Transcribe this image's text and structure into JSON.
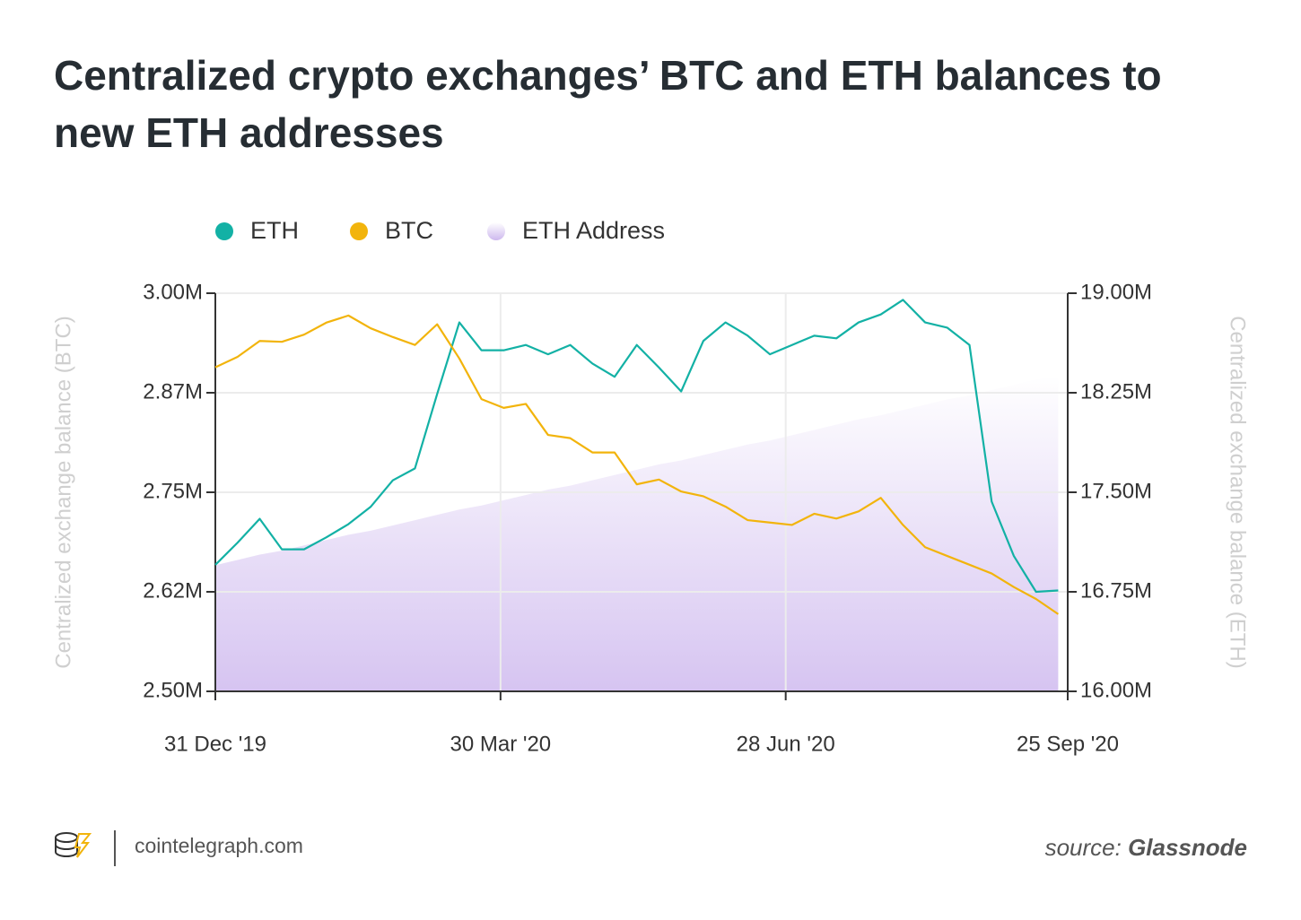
{
  "chart_data": {
    "type": "line",
    "title": "Centralized crypto exchanges’ BTC and ETH balances to new ETH addresses",
    "ylabel": "Centralized exchange balance (BTC)",
    "y2label": "Centralized exchange balance (ETH)",
    "x": [
      "2019-12-31",
      "2020-01-07",
      "2020-01-14",
      "2020-01-21",
      "2020-01-28",
      "2020-02-04",
      "2020-02-11",
      "2020-02-18",
      "2020-02-25",
      "2020-03-03",
      "2020-03-10",
      "2020-03-17",
      "2020-03-24",
      "2020-03-31",
      "2020-04-07",
      "2020-04-14",
      "2020-04-21",
      "2020-04-28",
      "2020-05-05",
      "2020-05-12",
      "2020-05-19",
      "2020-05-26",
      "2020-06-02",
      "2020-06-09",
      "2020-06-16",
      "2020-06-23",
      "2020-06-30",
      "2020-07-07",
      "2020-07-14",
      "2020-07-21",
      "2020-07-28",
      "2020-08-04",
      "2020-08-11",
      "2020-08-18",
      "2020-08-25",
      "2020-09-01",
      "2020-09-08",
      "2020-09-15",
      "2020-09-22"
    ],
    "xlim": [
      "2019-12-31",
      "2020-09-25"
    ],
    "xticks": [
      {
        "value": "2019-12-31",
        "label": "31 Dec '19"
      },
      {
        "value": "2020-03-30",
        "label": "30 Mar '20"
      },
      {
        "value": "2020-06-28",
        "label": "28 Jun '20"
      },
      {
        "value": "2020-09-25",
        "label": "25 Sep '20"
      }
    ],
    "ylim": [
      2500000,
      3000000
    ],
    "yticks": [
      {
        "value": 2500000,
        "label": "2.50M"
      },
      {
        "value": 2625000,
        "label": "2.62M"
      },
      {
        "value": 2750000,
        "label": "2.75M"
      },
      {
        "value": 2875000,
        "label": "2.87M"
      },
      {
        "value": 3000000,
        "label": "3.00M"
      }
    ],
    "y2lim": [
      16000000,
      19000000
    ],
    "y2ticks": [
      {
        "value": 16000000,
        "label": "16.00M"
      },
      {
        "value": 16750000,
        "label": "16.75M"
      },
      {
        "value": 17500000,
        "label": "17.50M"
      },
      {
        "value": 18250000,
        "label": "18.25M"
      },
      {
        "value": 19000000,
        "label": "19.00M"
      }
    ],
    "grid": true,
    "legend": "top",
    "series": [
      {
        "name": "ETH",
        "color": "#13b1a5",
        "axis": "y2",
        "values": [
          16953000,
          17120000,
          17300000,
          17070000,
          17070000,
          17160000,
          17260000,
          17390000,
          17590000,
          17680000,
          18240000,
          18780000,
          18570000,
          18570000,
          18610000,
          18540000,
          18610000,
          18470000,
          18370000,
          18610000,
          18440000,
          18260000,
          18640000,
          18780000,
          18680000,
          18540000,
          18610000,
          18680000,
          18660000,
          18780000,
          18840000,
          18950000,
          18780000,
          18740000,
          18610000,
          17430000,
          17020000,
          16750000,
          16760000
        ]
      },
      {
        "name": "BTC",
        "color": "#f2b40c",
        "values": [
          2907000,
          2920000,
          2940000,
          2939000,
          2948000,
          2963000,
          2972000,
          2956000,
          2945000,
          2935000,
          2961000,
          2918000,
          2867000,
          2856000,
          2861000,
          2822000,
          2818000,
          2800000,
          2800000,
          2760000,
          2766000,
          2751000,
          2745000,
          2732000,
          2715000,
          2712000,
          2709000,
          2723000,
          2717000,
          2726000,
          2743000,
          2709000,
          2681000,
          2670000,
          2659000,
          2648000,
          2631000,
          2616000,
          2597000
        ]
      },
      {
        "name": "ETH Address",
        "color": "#d3c1ef",
        "type": "area",
        "axis": "y2",
        "values": [
          16950000,
          16990000,
          17030000,
          17060000,
          17100000,
          17140000,
          17180000,
          17210000,
          17250000,
          17290000,
          17330000,
          17370000,
          17400000,
          17440000,
          17480000,
          17520000,
          17550000,
          17590000,
          17630000,
          17670000,
          17710000,
          17740000,
          17780000,
          17820000,
          17860000,
          17890000,
          17930000,
          17970000,
          18010000,
          18050000,
          18080000,
          18120000,
          18160000,
          18200000,
          18230000,
          18270000,
          18310000,
          18350000,
          18380000
        ]
      }
    ]
  },
  "footer": {
    "site": "cointelegraph.com",
    "source_label": "source:",
    "source": "Glassnode"
  }
}
